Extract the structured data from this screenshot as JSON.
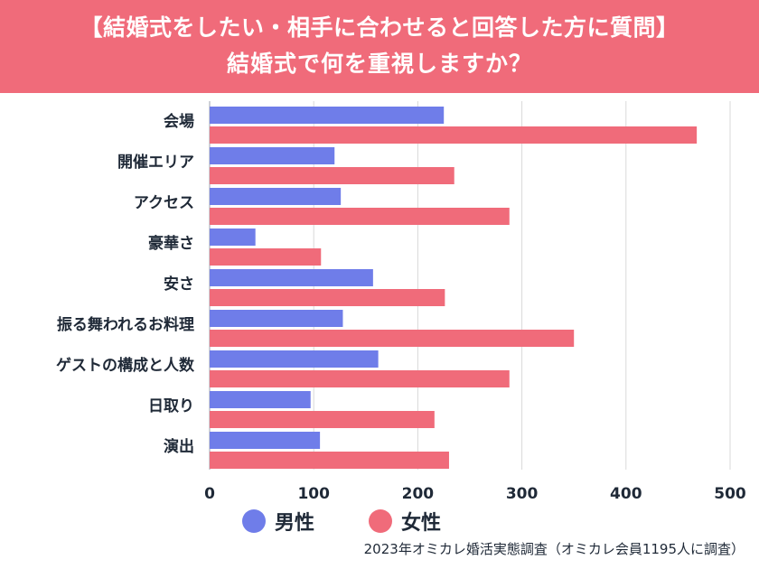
{
  "header": {
    "title_line1": "【結婚式をしたい・相手に合わせると回答した方に質問】",
    "title_line2": "結婚式で何を重視しますか？"
  },
  "chart_data": {
    "type": "bar",
    "orientation": "horizontal",
    "title": "結婚式で何を重視しますか？",
    "categories": [
      "会場",
      "開催エリア",
      "アクセス",
      "豪華さ",
      "安さ",
      "振る舞われるお料理",
      "ゲストの構成と人数",
      "日取り",
      "演出"
    ],
    "series": [
      {
        "name": "男性",
        "color": "#6f7de9",
        "values": [
          225,
          120,
          126,
          44,
          157,
          128,
          162,
          97,
          106
        ]
      },
      {
        "name": "女性",
        "color": "#f06b7a",
        "values": [
          468,
          235,
          288,
          107,
          226,
          350,
          288,
          216,
          230
        ]
      }
    ],
    "xlim": [
      0,
      500
    ],
    "xticks": [
      0,
      100,
      200,
      300,
      400,
      500
    ],
    "grid": true,
    "legend_position": "bottom"
  },
  "source": "2023年オミカレ婚活実態調査（オミカレ会員1195人に調査）"
}
